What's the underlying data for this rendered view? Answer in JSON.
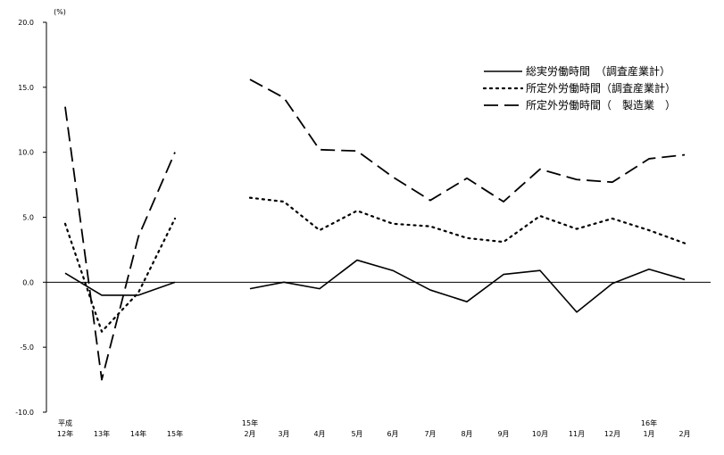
{
  "chart_data": {
    "type": "line",
    "unit_label": "(%)",
    "ylim": [
      -10,
      20
    ],
    "y_ticks": [
      "20.0",
      "15.0",
      "10.0",
      "5.0",
      "0.0",
      "-5.0",
      "-10.0"
    ],
    "y_tick_values": [
      20,
      15,
      10,
      5,
      0,
      -5,
      -10
    ],
    "grid": false,
    "legend_position": "top-right",
    "annual": {
      "categories": [
        {
          "top": "平成",
          "bottom": "12年"
        },
        {
          "top": "",
          "bottom": "13年"
        },
        {
          "top": "",
          "bottom": "14年"
        },
        {
          "top": "",
          "bottom": "15年"
        }
      ]
    },
    "monthly": {
      "categories": [
        {
          "top": "15年",
          "bottom": "2月"
        },
        {
          "top": "",
          "bottom": "3月"
        },
        {
          "top": "",
          "bottom": "4月"
        },
        {
          "top": "",
          "bottom": "5月"
        },
        {
          "top": "",
          "bottom": "6月"
        },
        {
          "top": "",
          "bottom": "7月"
        },
        {
          "top": "",
          "bottom": "8月"
        },
        {
          "top": "",
          "bottom": "9月"
        },
        {
          "top": "",
          "bottom": "10月"
        },
        {
          "top": "",
          "bottom": "11月"
        },
        {
          "top": "",
          "bottom": "12月"
        },
        {
          "top": "16年",
          "bottom": "1月"
        },
        {
          "top": "",
          "bottom": "2月"
        }
      ]
    },
    "series": [
      {
        "name": "総実労働時間　（調査産業計）",
        "style": "solid",
        "annual_values": [
          0.7,
          -1.0,
          -1.0,
          0.0
        ],
        "monthly_values": [
          -0.5,
          0.0,
          -0.5,
          1.7,
          0.9,
          -0.6,
          -1.5,
          0.6,
          0.9,
          -2.3,
          -0.1,
          1.0,
          0.2
        ]
      },
      {
        "name": "所定外労働時間（調査産業計）",
        "style": "dotted",
        "annual_values": [
          4.5,
          -3.8,
          -0.8,
          4.9
        ],
        "monthly_values": [
          6.5,
          6.2,
          4.0,
          5.5,
          4.5,
          4.3,
          3.4,
          3.1,
          5.1,
          4.1,
          4.9,
          4.0,
          3.0
        ]
      },
      {
        "name": "所定外労働時間（　製造業　）",
        "style": "dashed",
        "annual_values": [
          13.5,
          -7.5,
          3.5,
          10.0
        ],
        "monthly_values": [
          15.6,
          14.2,
          10.2,
          10.1,
          8.1,
          6.3,
          8.0,
          6.2,
          8.7,
          7.9,
          7.7,
          9.5,
          9.8
        ]
      }
    ]
  }
}
